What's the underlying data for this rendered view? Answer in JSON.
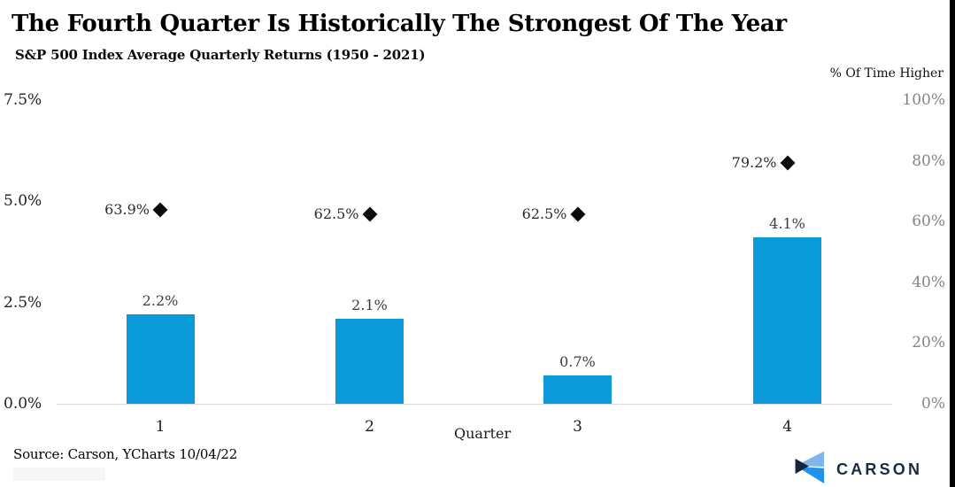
{
  "header": {
    "title": "The Fourth Quarter Is Historically The Strongest Of The Year",
    "subtitle": "S&P 500 Index Average Quarterly Returns (1950 - 2021)"
  },
  "chart_data": {
    "type": "bar",
    "categories": [
      "1",
      "2",
      "3",
      "4"
    ],
    "xlabel": "Quarter",
    "series": [
      {
        "name": "Average Quarterly Return",
        "type": "bar",
        "axis": "left",
        "values": [
          2.2,
          2.1,
          0.7,
          4.1
        ],
        "labels": [
          "2.2%",
          "2.1%",
          "0.7%",
          "4.1%"
        ]
      },
      {
        "name": "% Of Time Higher",
        "type": "diamond-marker",
        "axis": "right",
        "values": [
          63.9,
          62.5,
          62.5,
          79.2
        ],
        "labels": [
          "63.9%",
          "62.5%",
          "62.5%",
          "79.2%"
        ]
      }
    ],
    "left_axis": {
      "ticks": [
        "0.0%",
        "2.5%",
        "5.0%",
        "7.5%"
      ],
      "values": [
        0,
        2.5,
        5,
        7.5
      ],
      "max": 7.5
    },
    "right_axis": {
      "title": "% Of Time Higher",
      "ticks": [
        "0%",
        "20%",
        "40%",
        "60%",
        "80%",
        "100%"
      ],
      "values": [
        0,
        20,
        40,
        60,
        80,
        100
      ],
      "max": 100
    },
    "grid": "off",
    "legend": "none",
    "colors": {
      "bar": "#0b9bdb",
      "marker": "#0b0b0b",
      "axis_line": "#d9d9d9",
      "left_tick_text": "#1f1f1f",
      "right_tick_text": "#848484"
    }
  },
  "footer": {
    "source": "Source: Carson, YCharts 10/04/22"
  },
  "logo": {
    "text": "CARSON",
    "colors": {
      "navy": "#16243c",
      "light_blue": "#7fb5ea",
      "bright_blue": "#2192ee",
      "text": "#1b2a44"
    }
  }
}
